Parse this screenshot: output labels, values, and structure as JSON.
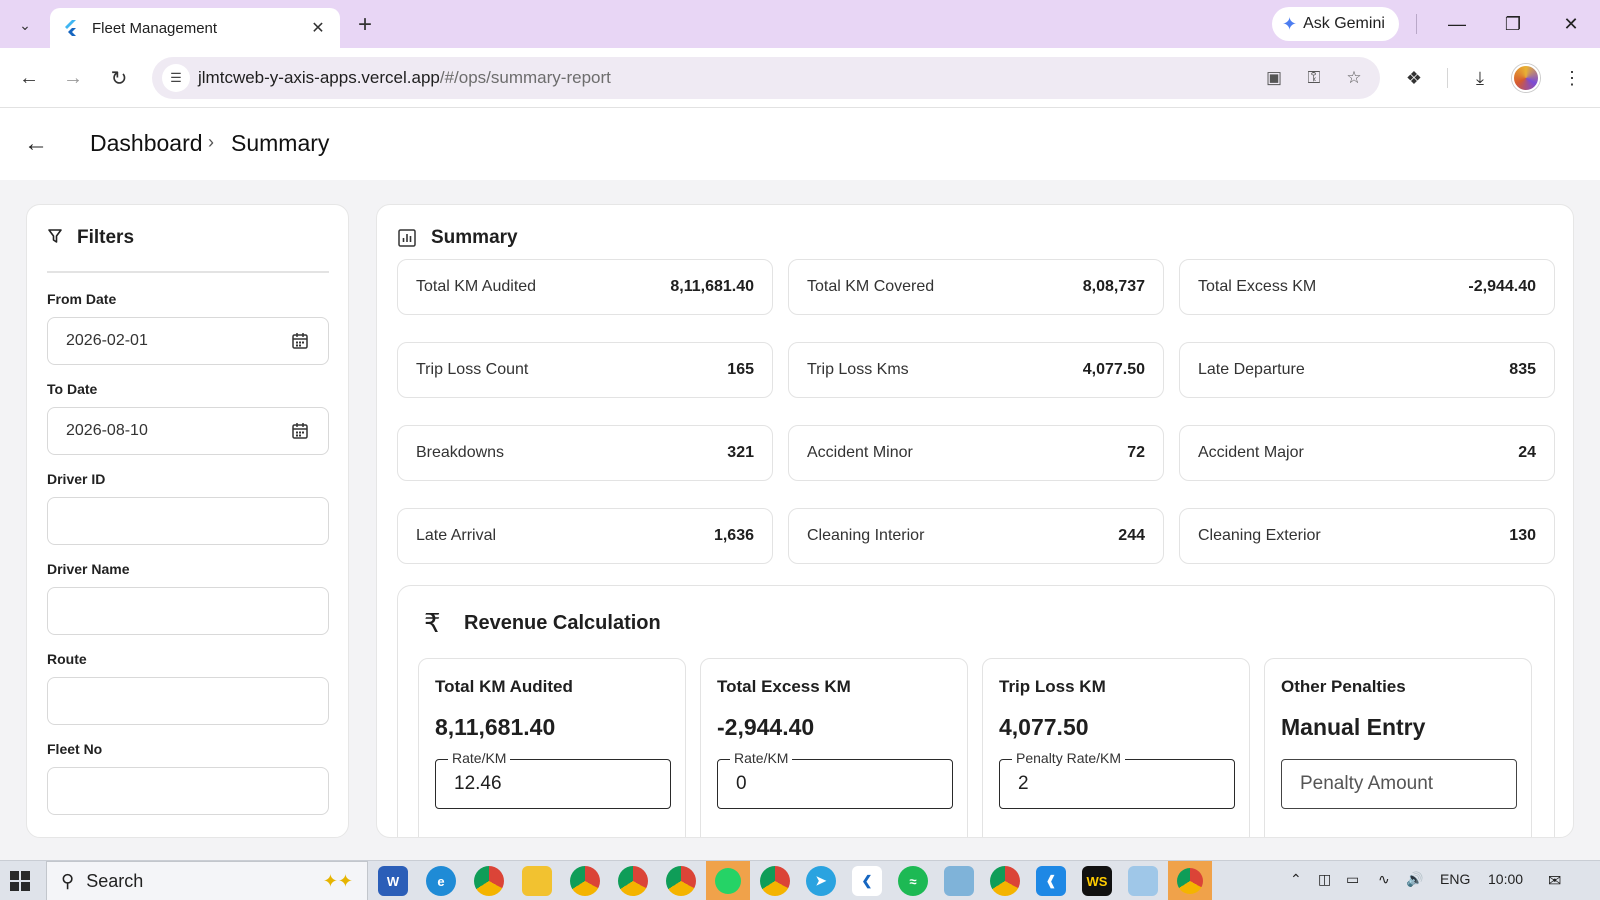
{
  "browser": {
    "tab_title": "Fleet Management",
    "ask_gemini_label": "Ask Gemini",
    "url_host": "jlmtcweb-y-axis-apps.vercel.app",
    "url_path": "/#/ops/summary-report"
  },
  "header": {
    "breadcrumb": [
      "Dashboard",
      "Summary"
    ]
  },
  "filters": {
    "title": "Filters",
    "from_date_label": "From Date",
    "from_date_value": "2026-02-01",
    "to_date_label": "To Date",
    "to_date_value": "2026-08-10",
    "driver_id_label": "Driver ID",
    "driver_name_label": "Driver Name",
    "route_label": "Route",
    "fleet_no_label": "Fleet No"
  },
  "summary": {
    "title": "Summary",
    "stats": [
      {
        "label": "Total KM Audited",
        "value": "8,11,681.40"
      },
      {
        "label": "Total KM Covered",
        "value": "8,08,737"
      },
      {
        "label": "Total Excess KM",
        "value": "-2,944.40"
      },
      {
        "label": "Trip Loss Count",
        "value": "165"
      },
      {
        "label": "Trip Loss Kms",
        "value": "4,077.50"
      },
      {
        "label": "Late Departure",
        "value": "835"
      },
      {
        "label": "Breakdowns",
        "value": "321"
      },
      {
        "label": "Accident Minor",
        "value": "72"
      },
      {
        "label": "Accident Major",
        "value": "24"
      },
      {
        "label": "Late Arrival",
        "value": "1,636"
      },
      {
        "label": "Cleaning Interior",
        "value": "244"
      },
      {
        "label": "Cleaning Exterior",
        "value": "130"
      }
    ]
  },
  "revenue": {
    "title": "Revenue Calculation",
    "rupee_symbol": "₹",
    "cards": [
      {
        "title": "Total KM Audited",
        "value": "8,11,681.40",
        "field_label": "Rate/KM",
        "field_value": "12.46"
      },
      {
        "title": "Total Excess KM",
        "value": "-2,944.40",
        "field_label": "Rate/KM",
        "field_value": "0"
      },
      {
        "title": "Trip Loss KM",
        "value": "4,077.50",
        "field_label": "Penalty Rate/KM",
        "field_value": "2"
      },
      {
        "title": "Other Penalties",
        "value": "Manual Entry",
        "field_placeholder": "Penalty Amount"
      }
    ]
  },
  "taskbar": {
    "search_label": "Search",
    "language": "ENG",
    "time": "10:00"
  }
}
